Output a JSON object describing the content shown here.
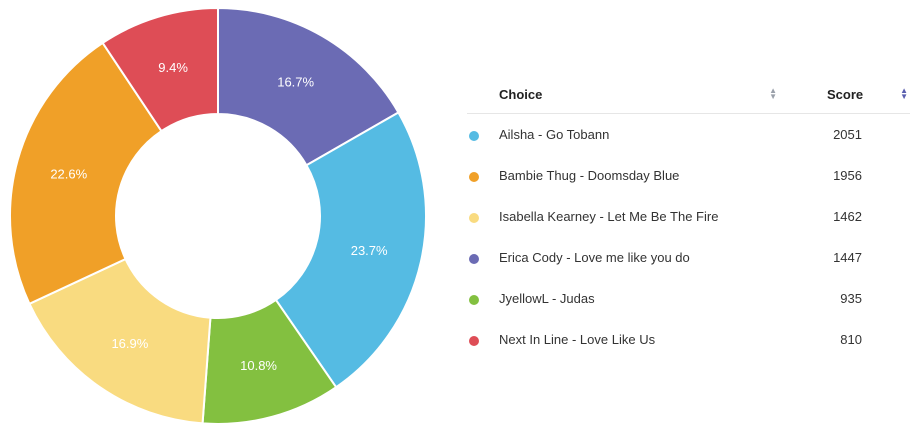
{
  "chart_data": {
    "type": "pie",
    "donut": true,
    "table": {
      "header_choice": "Choice",
      "header_score": "Score"
    },
    "slices": [
      {
        "label": "Ailsha - Go Tobann",
        "value": 2051,
        "percent_label": "23.7%",
        "color": "#55bbe3"
      },
      {
        "label": "Bambie Thug - Doomsday Blue",
        "value": 1956,
        "percent_label": "22.6%",
        "color": "#f0a028"
      },
      {
        "label": "Isabella Kearney - Let Me Be The Fire",
        "value": 1462,
        "percent_label": "16.9%",
        "color": "#f9db80"
      },
      {
        "label": "Erica Cody - Love me like you do",
        "value": 1447,
        "percent_label": "16.7%",
        "color": "#6b6bb4"
      },
      {
        "label": "JyellowL - Judas",
        "value": 935,
        "percent_label": "10.8%",
        "color": "#83c040"
      },
      {
        "label": "Next In Line - Love Like Us",
        "value": 810,
        "percent_label": "9.4%",
        "color": "#de4d56"
      }
    ],
    "draw_order": [
      "Erica Cody - Love me like you do",
      "Ailsha - Go Tobann",
      "JyellowL - Judas",
      "Isabella Kearney - Let Me Be The Fire",
      "Bambie Thug - Doomsday Blue",
      "Next In Line - Love Like Us"
    ],
    "legend_position": "right"
  }
}
